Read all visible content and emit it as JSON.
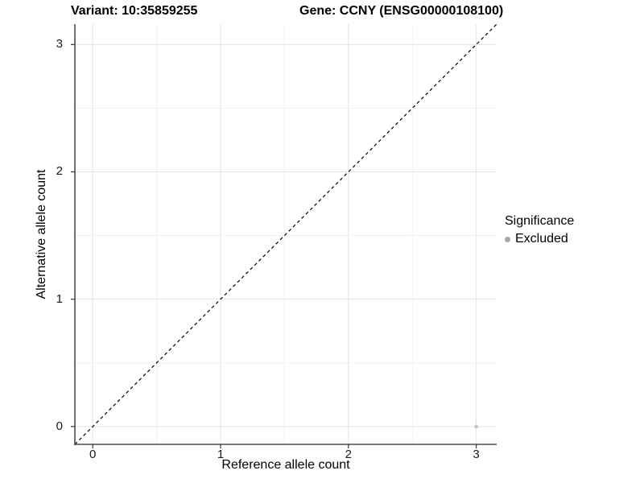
{
  "title": {
    "variant": "Variant: 10:35859255",
    "gene": "Gene: CCNY (ENSG00000108100)"
  },
  "axes": {
    "x_label": "Reference allele count",
    "y_label": "Alternative allele count"
  },
  "legend": {
    "title": "Significance",
    "items": [
      {
        "label": "Excluded",
        "color": "#a8a8a8"
      }
    ]
  },
  "chart_data": {
    "type": "scatter",
    "title": "Variant: 10:35859255   Gene: CCNY (ENSG00000108100)",
    "xlabel": "Reference allele count",
    "ylabel": "Alternative allele count",
    "x_ticks": [
      0,
      1,
      2,
      3
    ],
    "y_ticks": [
      0,
      1,
      2,
      3
    ],
    "x_tick_labels": [
      "0",
      "1",
      "2",
      "3"
    ],
    "y_tick_labels": [
      "0",
      "1",
      "2",
      "3"
    ],
    "x_minor_ticks": [
      0.5,
      1.5,
      2.5
    ],
    "y_minor_ticks": [
      0.5,
      1.5,
      2.5
    ],
    "xlim": [
      -0.14,
      3.16
    ],
    "ylim": [
      -0.14,
      3.16
    ],
    "grid": true,
    "legend_position": "right",
    "series": [
      {
        "name": "Excluded",
        "color": "#c2c2c2",
        "points": [
          {
            "x": 3,
            "y": 0
          }
        ]
      }
    ],
    "reference_line": {
      "type": "identity",
      "style": "dashed",
      "color": "#000000"
    },
    "style": {
      "grid_major_color": "#e3e3e3",
      "grid_minor_color": "#f0f0f0",
      "axis_line_color": "#4d4d4d",
      "tick_mark_color": "#333333",
      "point_radius": 2.3
    }
  }
}
